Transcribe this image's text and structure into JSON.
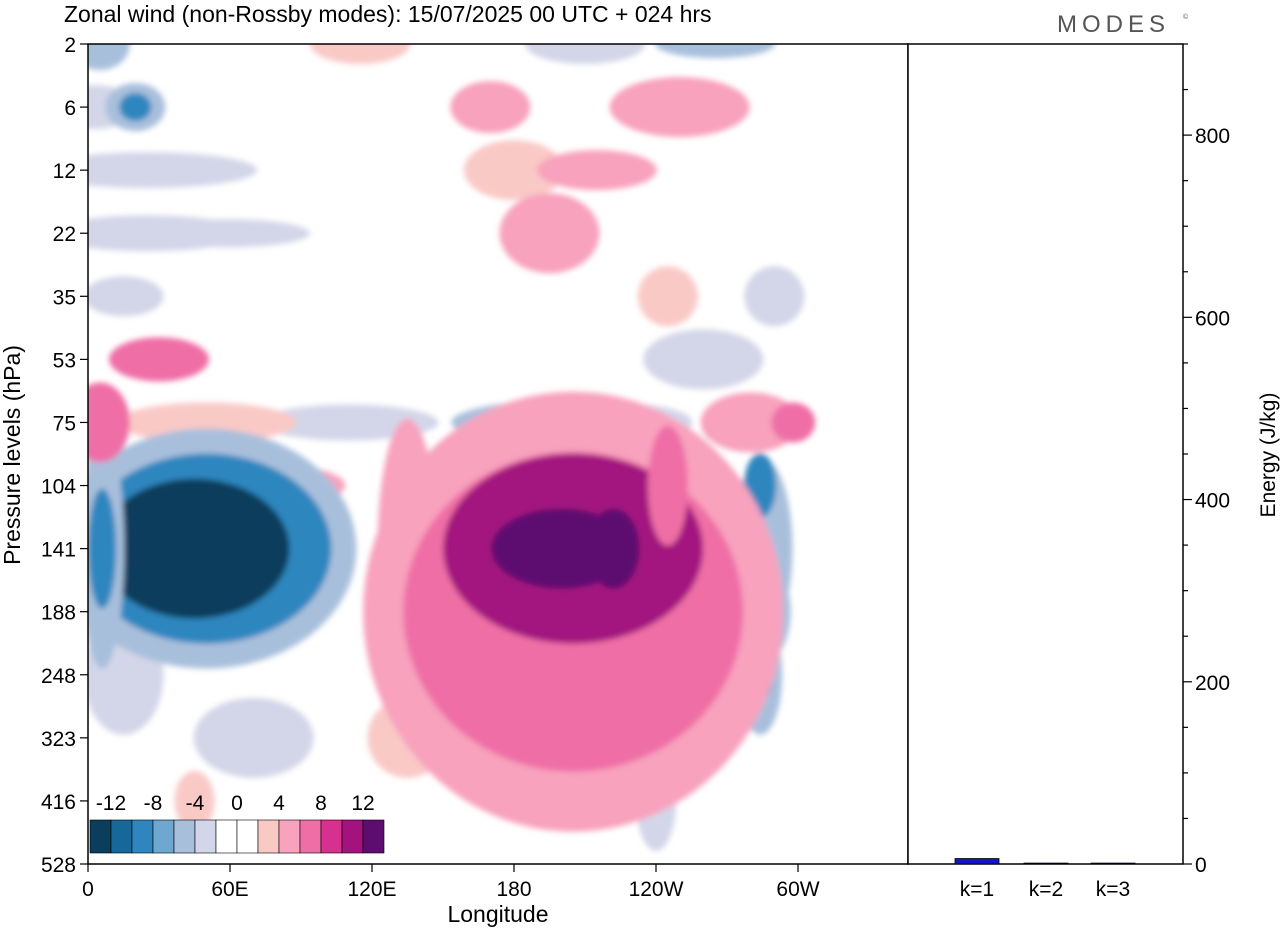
{
  "title": "Zonal wind (non-Rossby modes):  15/07/2025  00 UTC  + 024 hrs",
  "brand": "MODES",
  "brand_mark": "©",
  "chart_data": [
    {
      "type": "heatmap",
      "variable": "Zonal wind (non-Rossby modes)",
      "xlabel": "Longitude",
      "ylabel": "Pressure levels (hPa)",
      "x_ticks": [
        "0",
        "60E",
        "120E",
        "180",
        "120W",
        "60W"
      ],
      "y_ticks": [
        "2",
        "6",
        "12",
        "22",
        "35",
        "53",
        "75",
        "104",
        "141",
        "188",
        "248",
        "323",
        "416",
        "528"
      ],
      "colorbar": {
        "labels": [
          "-12",
          "-8",
          "-4",
          "0",
          "4",
          "8",
          "12"
        ],
        "colors": [
          "#0b3d5c",
          "#16679a",
          "#2f86bf",
          "#6ea7cf",
          "#a8bfdc",
          "#d3d6e8",
          "#ffffff",
          "#ffffff",
          "#f9c9c6",
          "#f8a2bd",
          "#ef6ea6",
          "#d7308f",
          "#a3127f",
          "#5d0d6f"
        ]
      },
      "features": [
        {
          "lon": 34,
          "level": "141",
          "value": -16
        },
        {
          "lon": 5,
          "level": "141",
          "value": -10
        },
        {
          "lon": 17,
          "level": "6",
          "value": -8
        },
        {
          "lon": 284,
          "level": "104",
          "value": -10
        },
        {
          "lon": 284,
          "level": "248",
          "value": -8
        },
        {
          "lon": 126,
          "level": "141",
          "value": 10
        },
        {
          "lon": 192,
          "level": "141",
          "value": 12
        },
        {
          "lon": 210,
          "level": "141",
          "value": 12
        },
        {
          "lon": 221,
          "level": "141",
          "value": 11
        },
        {
          "lon": 243,
          "level": "104",
          "value": 8
        },
        {
          "lon": 297,
          "level": "75",
          "value": 8
        },
        {
          "lon": 5,
          "level": "75",
          "value": 7
        },
        {
          "lon": 30,
          "level": "53",
          "value": 5
        }
      ]
    },
    {
      "type": "bar",
      "categories": [
        "k=1",
        "k=2",
        "k=3"
      ],
      "values": [
        6,
        1,
        1
      ],
      "ylabel": "Energy (J/kg)",
      "y_ticks": [
        "0",
        "200",
        "400",
        "600",
        "800"
      ],
      "ylim": [
        0,
        900
      ],
      "bar_color": "#1515c8"
    }
  ]
}
